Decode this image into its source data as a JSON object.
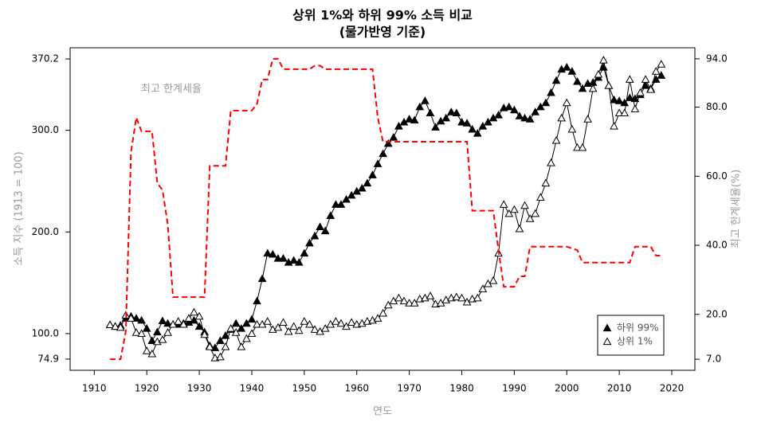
{
  "chart_data": {
    "type": "line",
    "title": "상위 1%와 하위 99% 소득 비교",
    "subtitle": "(물가반영 기준)",
    "x_label": "연도",
    "y_label": "소득 지수 (1913 = 100)",
    "y2_label": "최고 한계세율(%)",
    "annotation": "최고 한계세율",
    "legend": "bottomright",
    "xlim": [
      1905.4,
      2024.4
    ],
    "xticks": [
      1910,
      1920,
      1930,
      1940,
      1950,
      1960,
      1970,
      1980,
      1990,
      2000,
      2010,
      2020
    ],
    "ylim": [
      63.9,
      381.2
    ],
    "yticks": [
      {
        "value": 74.9,
        "label": "74.9"
      },
      {
        "value": 100,
        "label": "100.0"
      },
      {
        "value": 200,
        "label": "200.0"
      },
      {
        "value": 300,
        "label": "300.0"
      },
      {
        "value": 370.2,
        "label": "370.2"
      }
    ],
    "y2lim": [
      3.8,
      97.2
    ],
    "y2ticks": [
      {
        "value": 7,
        "label": "7.0"
      },
      {
        "value": 20,
        "label": "20.0"
      },
      {
        "value": 40,
        "label": "40.0"
      },
      {
        "value": 60,
        "label": "60.0"
      },
      {
        "value": 80,
        "label": "80.0"
      },
      {
        "value": 94,
        "label": "94.0"
      }
    ],
    "x": [
      1913,
      1914,
      1915,
      1916,
      1917,
      1918,
      1919,
      1920,
      1921,
      1922,
      1923,
      1924,
      1925,
      1926,
      1927,
      1928,
      1929,
      1930,
      1931,
      1932,
      1933,
      1934,
      1935,
      1936,
      1937,
      1938,
      1939,
      1940,
      1941,
      1942,
      1943,
      1944,
      1945,
      1946,
      1947,
      1948,
      1949,
      1950,
      1951,
      1952,
      1953,
      1954,
      1955,
      1956,
      1957,
      1958,
      1959,
      1960,
      1961,
      1962,
      1963,
      1964,
      1965,
      1966,
      1967,
      1968,
      1969,
      1970,
      1971,
      1972,
      1973,
      1974,
      1975,
      1976,
      1977,
      1978,
      1979,
      1980,
      1981,
      1982,
      1983,
      1984,
      1985,
      1986,
      1987,
      1988,
      1989,
      1990,
      1991,
      1992,
      1993,
      1994,
      1995,
      1996,
      1997,
      1998,
      1999,
      2000,
      2001,
      2002,
      2003,
      2004,
      2005,
      2006,
      2007,
      2008,
      2009,
      2010,
      2011,
      2012,
      2013,
      2014,
      2015,
      2016,
      2017,
      2018
    ],
    "series": [
      {
        "name": "하위 99%",
        "color": "#000000",
        "marker": "triangle-filled",
        "axis": "y",
        "values": [
          108.6,
          107,
          108,
          115,
          117,
          115,
          113,
          105,
          93,
          101.5,
          112.5,
          110,
          109,
          109,
          110,
          111,
          113,
          107,
          101.5,
          88,
          86,
          93,
          98,
          104,
          110,
          105,
          110,
          114,
          132,
          154,
          179,
          178,
          174,
          174,
          170,
          172,
          170,
          179,
          189,
          196,
          205,
          201,
          216,
          227,
          227,
          232,
          236,
          240,
          243,
          248,
          256,
          267,
          277,
          287,
          293,
          304,
          308,
          311,
          310,
          323,
          329,
          317,
          303,
          309,
          312,
          318,
          317,
          308,
          307,
          301,
          297,
          304,
          308,
          312,
          315,
          322,
          323,
          320,
          314,
          312,
          311,
          318,
          323,
          327,
          337,
          349,
          360,
          362,
          358,
          348,
          341,
          346,
          347,
          352,
          362,
          344,
          330,
          329,
          327,
          332,
          331,
          335,
          344,
          341,
          350,
          354
        ]
      },
      {
        "name": "상위 1%",
        "color": "#000000",
        "marker": "triangle-open",
        "axis": "y",
        "values": [
          108.6,
          107,
          106,
          118,
          115,
          101,
          100,
          83,
          80,
          92,
          94,
          101,
          109,
          112,
          109,
          115,
          121,
          117,
          99,
          87,
          76,
          77,
          87,
          105,
          101,
          87,
          95,
          100,
          109,
          109,
          112,
          104,
          106,
          111,
          102,
          107,
          103,
          112,
          109,
          104,
          102,
          105,
          109,
          112,
          110,
          107,
          111,
          109,
          110,
          112,
          113,
          115,
          120,
          128,
          132,
          135,
          132,
          130,
          130,
          134,
          135,
          137,
          129,
          130,
          133,
          135,
          136,
          135,
          131,
          134,
          135,
          144,
          149,
          152,
          179,
          227,
          218,
          222,
          203,
          226,
          213,
          218,
          234,
          248,
          268,
          290,
          312,
          327,
          301,
          283,
          283,
          311,
          341,
          355,
          369,
          344,
          304,
          317,
          317,
          350,
          321,
          337,
          350,
          340,
          358,
          365
        ]
      },
      {
        "color": "#ff0000",
        "marker": "none",
        "dash": true,
        "axis": "y2",
        "values": [
          7,
          7,
          7,
          15,
          67,
          77,
          73,
          73,
          73,
          58,
          56,
          46,
          25,
          25,
          25,
          25,
          25,
          25,
          25,
          63,
          63,
          63,
          63,
          79,
          79,
          79,
          79,
          79,
          81,
          88,
          88,
          94,
          94,
          91,
          91,
          91,
          91,
          91,
          91,
          92,
          92,
          91,
          91,
          91,
          91,
          91,
          91,
          91,
          91,
          91,
          91,
          77,
          70,
          70,
          70,
          70,
          70,
          70,
          70,
          70,
          70,
          70,
          70,
          70,
          70,
          70,
          70,
          70,
          70,
          50,
          50,
          50,
          50,
          50,
          38.5,
          28,
          28,
          28,
          31,
          31,
          39.6,
          39.6,
          39.6,
          39.6,
          39.6,
          39.6,
          39.6,
          39.6,
          39.1,
          38.6,
          35,
          35,
          35,
          35,
          35,
          35,
          35,
          35,
          35,
          35,
          39.6,
          39.6,
          39.6,
          39.6,
          37,
          37
        ]
      }
    ]
  }
}
